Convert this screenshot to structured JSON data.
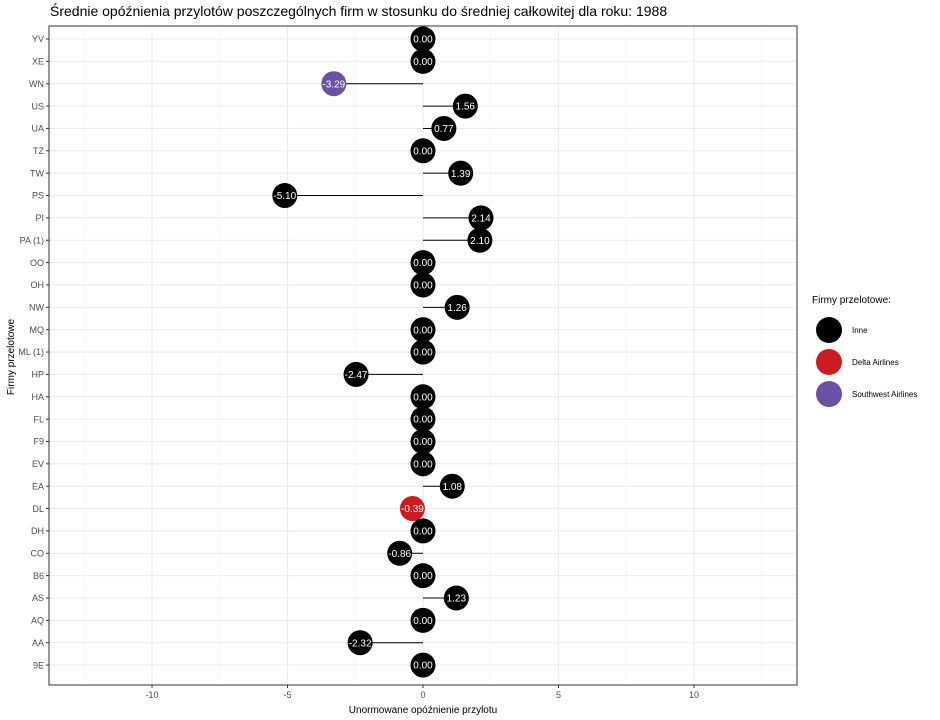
{
  "chart_data": {
    "type": "lollipop",
    "title": "Średnie opóźnienia przylotów poszczególnych firm w stosunku do średniej całkowitej dla roku: 1988",
    "xlabel": "Unormowane opóźnienie przylotu",
    "ylabel": "Firmy przelotowe",
    "xlim": [
      -13.8,
      13.8
    ],
    "xticks": [
      -10,
      -5,
      0,
      5,
      10
    ],
    "xtick_labels": [
      "-10",
      "-5",
      "0",
      "5",
      "10"
    ],
    "grid": true,
    "legend_position": "right",
    "categories": [
      "YV",
      "XE",
      "WN",
      "US",
      "UA",
      "TZ",
      "TW",
      "PS",
      "PI",
      "PA (1)",
      "OO",
      "OH",
      "NW",
      "MQ",
      "ML (1)",
      "HP",
      "HA",
      "FL",
      "F9",
      "EV",
      "EA",
      "DL",
      "DH",
      "CO",
      "B6",
      "AS",
      "AQ",
      "AA",
      "9E"
    ],
    "values": [
      0.0,
      0.0,
      -3.29,
      1.56,
      0.77,
      0.0,
      1.39,
      -5.1,
      2.14,
      2.1,
      0.0,
      0.0,
      1.26,
      0.0,
      0.0,
      -2.47,
      0.0,
      0.0,
      0.0,
      0.0,
      1.08,
      -0.39,
      0.0,
      -0.86,
      0.0,
      1.23,
      0.0,
      -2.32,
      0.0
    ],
    "value_labels": [
      "0.00",
      "0.00",
      "-3.29",
      "1.56",
      "0.77",
      "0.00",
      "1.39",
      "-5.10",
      "2.14",
      "2.10",
      "0.00",
      "0.00",
      "1.26",
      "0.00",
      "0.00",
      "-2.47",
      "0.00",
      "0.00",
      "0.00",
      "0.00",
      "1.08",
      "-0.39",
      "0.00",
      "-0.86",
      "0.00",
      "1.23",
      "0.00",
      "-2.32",
      "0.00"
    ],
    "groups": [
      "Inne",
      "Inne",
      "Southwest Airlines",
      "Inne",
      "Inne",
      "Inne",
      "Inne",
      "Inne",
      "Inne",
      "Inne",
      "Inne",
      "Inne",
      "Inne",
      "Inne",
      "Inne",
      "Inne",
      "Inne",
      "Inne",
      "Inne",
      "Inne",
      "Inne",
      "Delta Airlines",
      "Inne",
      "Inne",
      "Inne",
      "Inne",
      "Inne",
      "Inne",
      "Inne"
    ],
    "legend": {
      "title": "Firmy przelotowe:",
      "items": [
        {
          "name": "Inne",
          "color": "#000000"
        },
        {
          "name": "Delta Airlines",
          "color": "#cd1b22"
        },
        {
          "name": "Southwest Airlines",
          "color": "#6a51a3"
        }
      ]
    }
  }
}
